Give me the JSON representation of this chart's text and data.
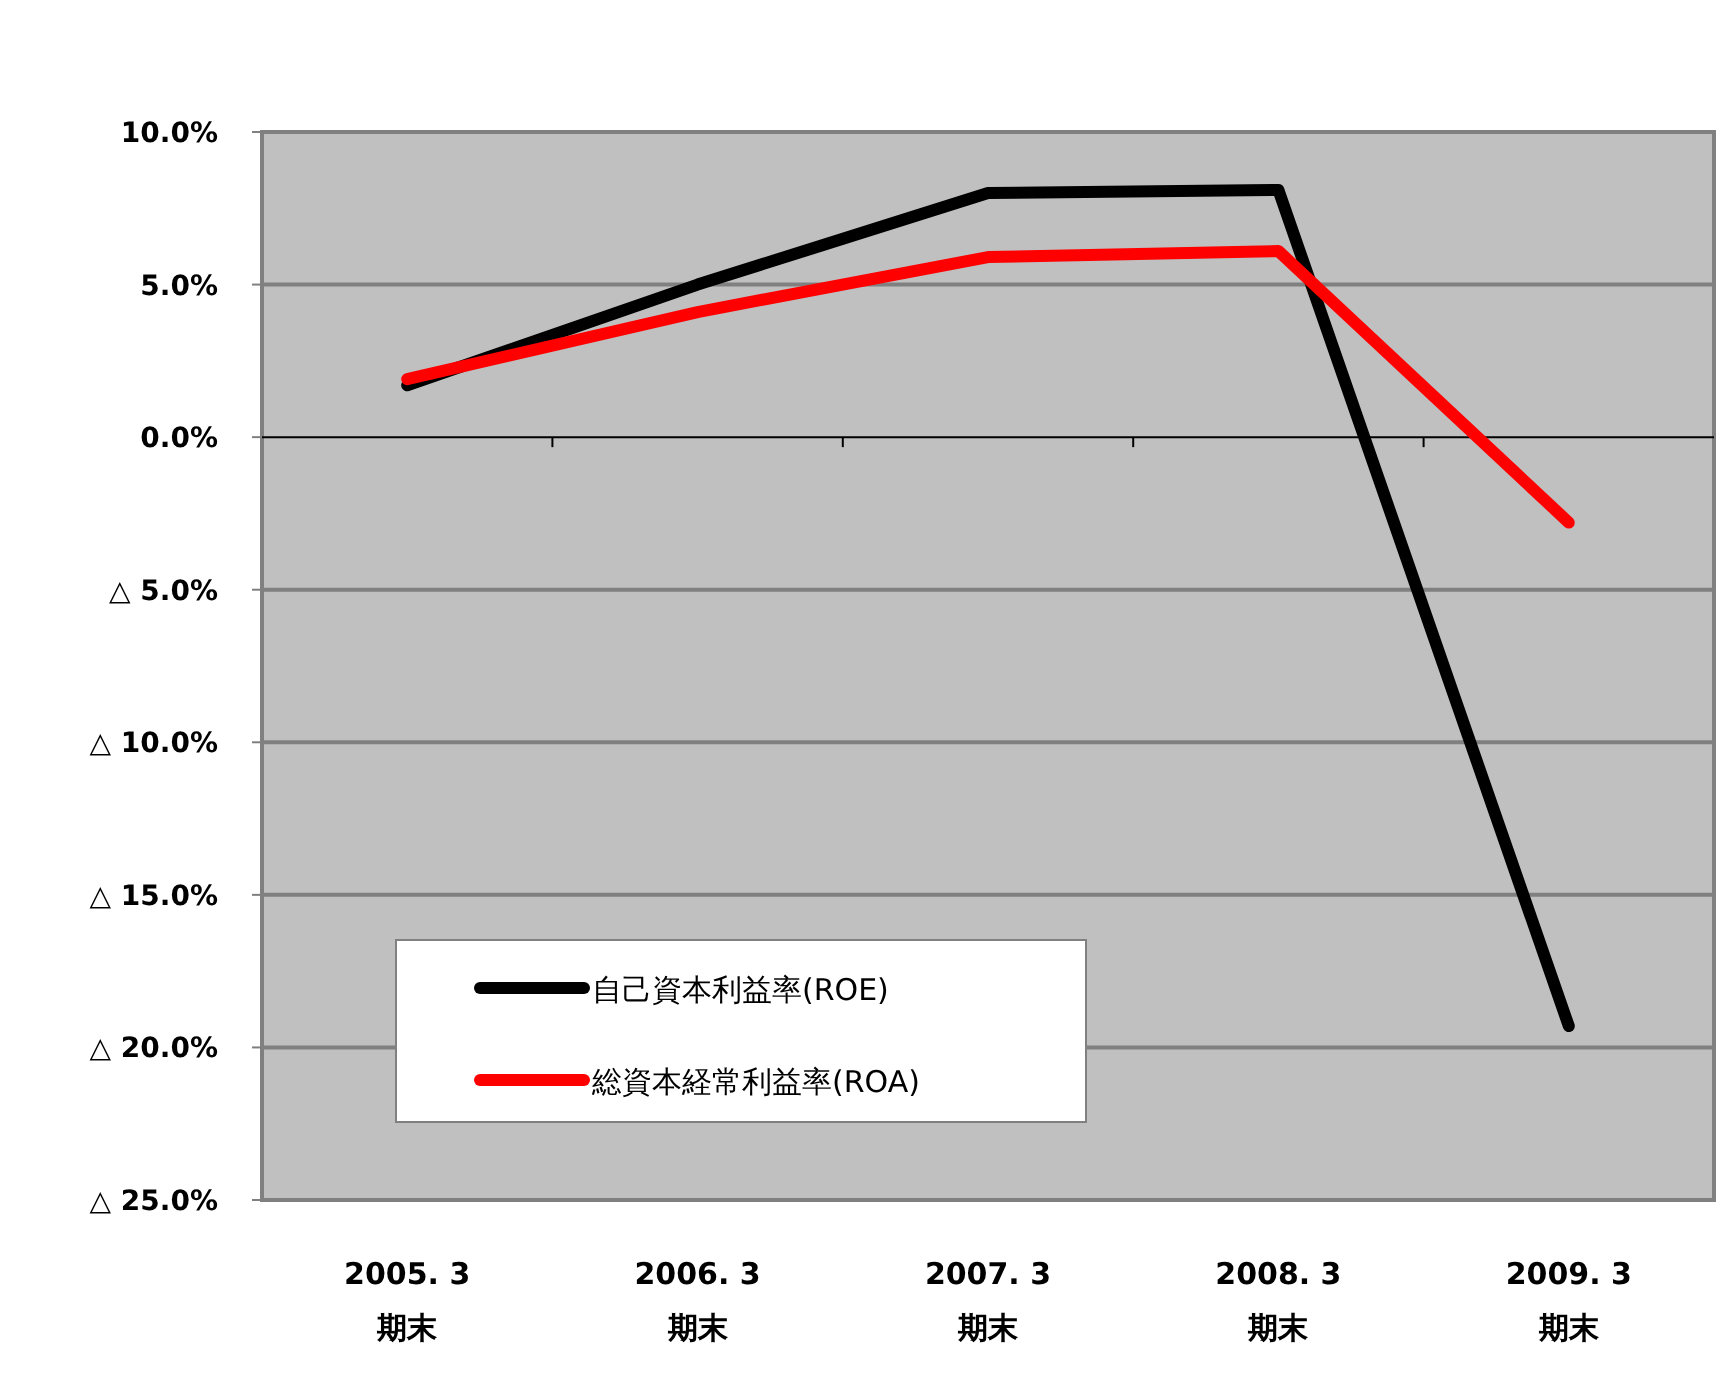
{
  "chart_data": {
    "type": "line",
    "categories": [
      "2005. 3\n期末",
      "2006. 3\n期末",
      "2007. 3\n期末",
      "2008. 3\n期末",
      "2009. 3\n期末"
    ],
    "series": [
      {
        "name": "自己資本利益率(ROE)",
        "color": "#000000",
        "values": [
          1.7,
          5.0,
          8.0,
          8.1,
          -19.3
        ]
      },
      {
        "name": "総資本経常利益率(ROA)",
        "color": "#ff0000",
        "values": [
          1.9,
          4.1,
          5.9,
          6.1,
          -2.8
        ]
      }
    ],
    "ylim": [
      -25,
      10
    ],
    "yticks": [
      {
        "value": 10,
        "label": "10.0%"
      },
      {
        "value": 5,
        "label": "5.0%"
      },
      {
        "value": 0,
        "label": "0.0%"
      },
      {
        "value": -5,
        "label": "△ 5.0%"
      },
      {
        "value": -10,
        "label": "△ 10.0%"
      },
      {
        "value": -15,
        "label": "△ 15.0%"
      },
      {
        "value": -20,
        "label": "△ 20.0%"
      },
      {
        "value": -25,
        "label": "△ 25.0%"
      }
    ],
    "grid": "y",
    "legend": "bottom left",
    "marker": "none",
    "line_style": "solid"
  }
}
